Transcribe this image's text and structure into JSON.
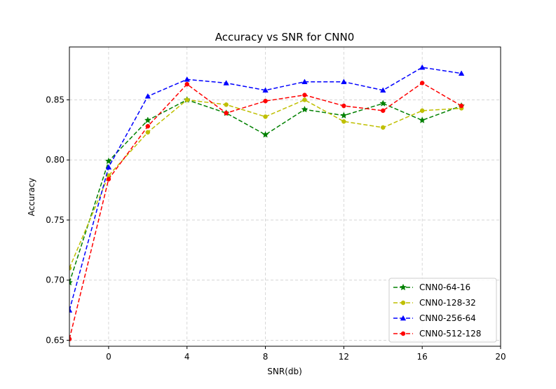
{
  "chart_data": {
    "type": "line",
    "title": "Accuracy vs SNR for CNN0",
    "xlabel": "SNR(db)",
    "ylabel": "Accuracy",
    "xlim": [
      -2,
      20
    ],
    "ylim": [
      0.645,
      0.894
    ],
    "xticks": [
      0,
      4,
      8,
      12,
      16,
      20
    ],
    "xtick_labels": [
      "0",
      "4",
      "8",
      "12",
      "16",
      "20"
    ],
    "yticks": [
      0.65,
      0.7,
      0.75,
      0.8,
      0.85
    ],
    "ytick_labels": [
      "0.65",
      "0.70",
      "0.75",
      "0.80",
      "0.85"
    ],
    "grid": true,
    "legend_position": "lower-right",
    "x": [
      -2,
      0,
      2,
      4,
      6,
      8,
      10,
      12,
      14,
      16,
      18
    ],
    "series": [
      {
        "name": "CNN0-64-16",
        "color": "#008000",
        "marker": "star",
        "values": [
          0.698,
          0.799,
          0.833,
          0.85,
          0.839,
          0.821,
          0.842,
          0.837,
          0.847,
          0.833,
          0.845
        ]
      },
      {
        "name": "CNN0-128-32",
        "color": "#bfbf00",
        "marker": "circle",
        "values": [
          0.71,
          0.787,
          0.823,
          0.85,
          0.846,
          0.836,
          0.85,
          0.832,
          0.827,
          0.841,
          0.843
        ]
      },
      {
        "name": "CNN0-256-64",
        "color": "#0000ff",
        "marker": "triangle",
        "values": [
          0.675,
          0.794,
          0.853,
          0.867,
          0.864,
          0.858,
          0.865,
          0.865,
          0.858,
          0.877,
          0.872
        ]
      },
      {
        "name": "CNN0-512-128",
        "color": "#ff0000",
        "marker": "circle",
        "values": [
          0.651,
          0.784,
          0.828,
          0.863,
          0.839,
          0.849,
          0.854,
          0.845,
          0.841,
          0.864,
          0.845
        ]
      }
    ]
  }
}
